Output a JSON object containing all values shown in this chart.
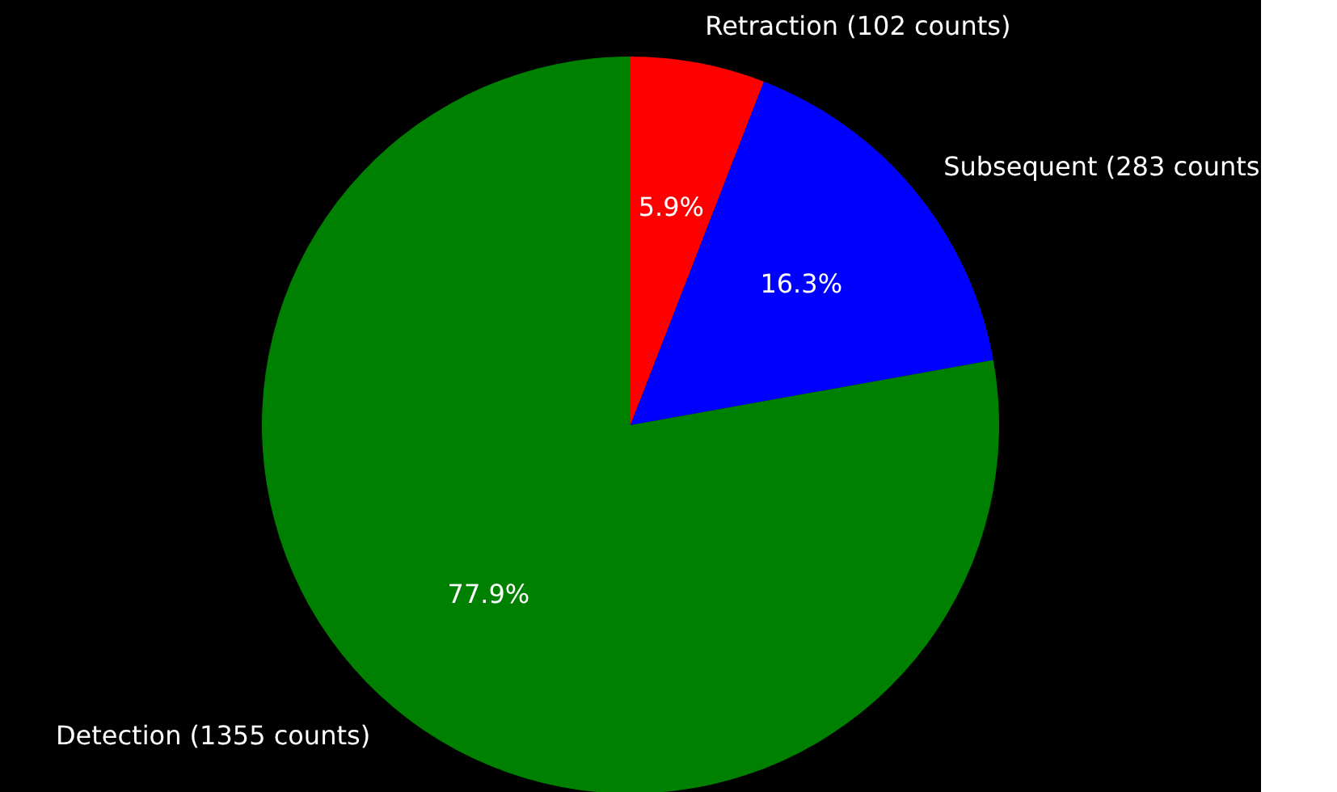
{
  "chart_data": {
    "type": "pie",
    "categories": [
      "Retraction (102 counts)",
      "Subsequent (283 counts",
      "Detection (1355 counts)"
    ],
    "values": [
      5.9,
      16.3,
      77.9
    ],
    "colors": [
      "#ff0000",
      "#0000ff",
      "#008000"
    ],
    "value_labels": [
      "5.9%",
      "16.3%",
      "77.9%"
    ]
  }
}
